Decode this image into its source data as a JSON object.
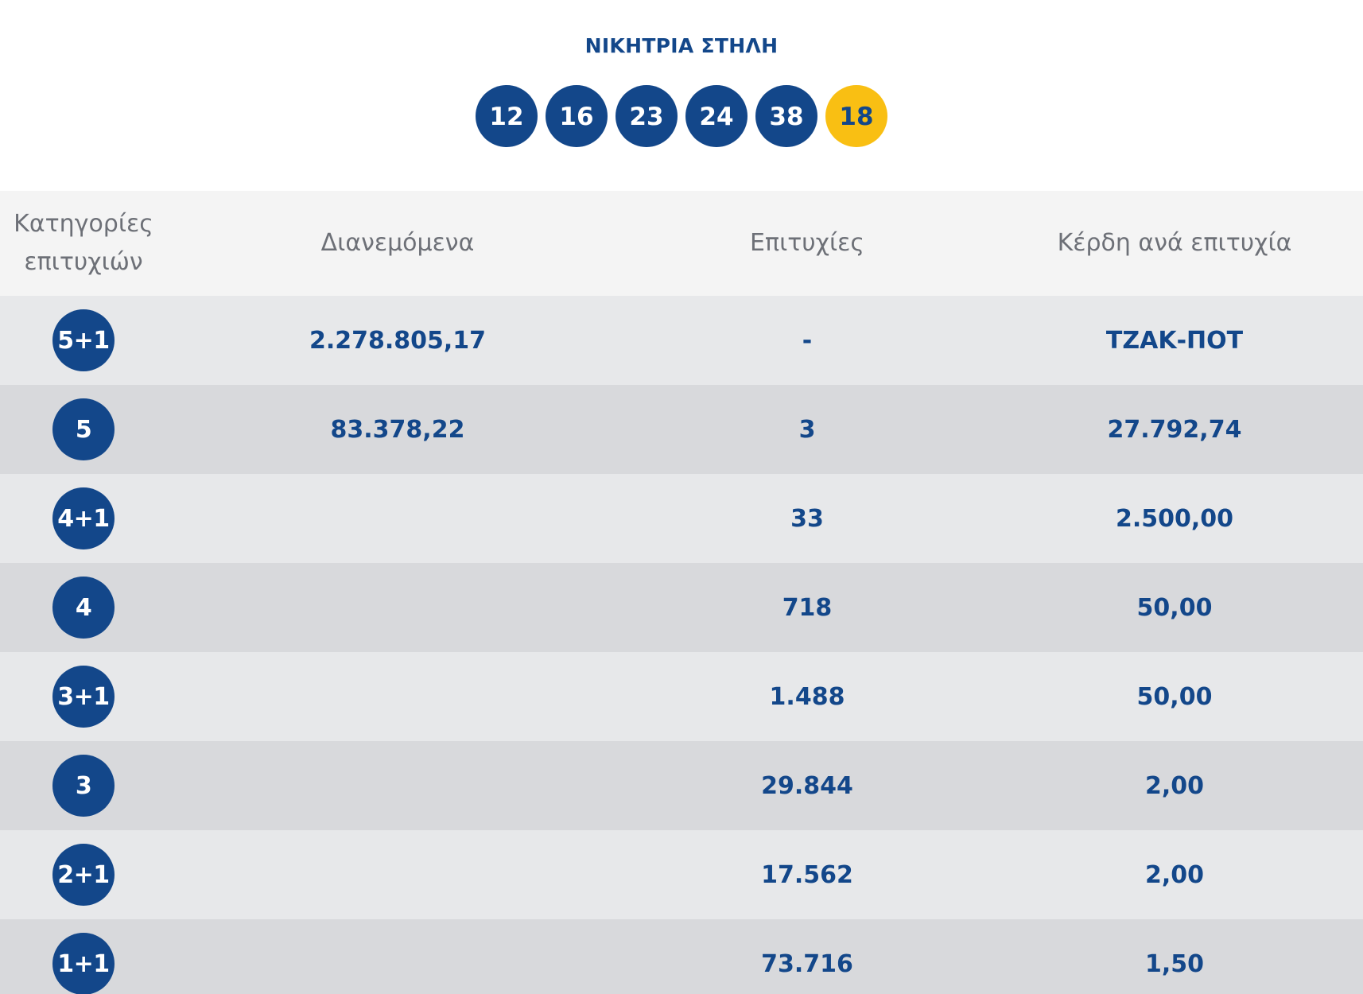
{
  "winning_column": {
    "title": "ΝΙΚΗΤΡΙΑ ΣΤΗΛΗ",
    "numbers": [
      "12",
      "16",
      "23",
      "24",
      "38"
    ],
    "joker": "18",
    "ball_color": "#13478a",
    "joker_color": "#f9bf13"
  },
  "table": {
    "headers": {
      "category_line1": "Κατηγορίες",
      "category_line2": "επιτυχιών",
      "distributed": "Διανεμόμενα",
      "winners": "Επιτυχίες",
      "prize": "Κέρδη ανά επιτυχία"
    },
    "rows": [
      {
        "category": "5+1",
        "distributed": "2.278.805,17",
        "winners": "-",
        "prize": "ΤΖΑΚ-ΠΟΤ"
      },
      {
        "category": "5",
        "distributed": "83.378,22",
        "winners": "3",
        "prize": "27.792,74"
      },
      {
        "category": "4+1",
        "distributed": "",
        "winners": "33",
        "prize": "2.500,00"
      },
      {
        "category": "4",
        "distributed": "",
        "winners": "718",
        "prize": "50,00"
      },
      {
        "category": "3+1",
        "distributed": "",
        "winners": "1.488",
        "prize": "50,00"
      },
      {
        "category": "3",
        "distributed": "",
        "winners": "29.844",
        "prize": "2,00"
      },
      {
        "category": "2+1",
        "distributed": "",
        "winners": "17.562",
        "prize": "2,00"
      },
      {
        "category": "1+1",
        "distributed": "",
        "winners": "73.716",
        "prize": "1,50"
      }
    ]
  }
}
